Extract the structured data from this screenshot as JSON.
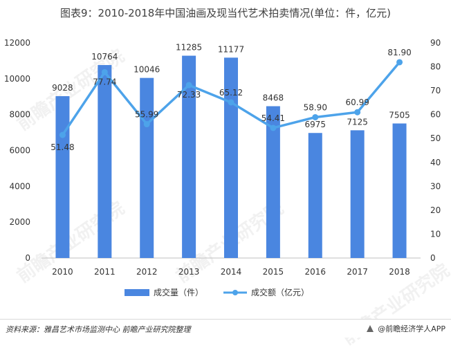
{
  "title": "图表9：2010-2018年中国油画及现当代艺术拍卖情况(单位：件，亿元)",
  "footer": {
    "source": "资料来源：雅昌艺术市场监测中心 前瞻产业研究院整理",
    "brand": "@前瞻经济学人APP"
  },
  "watermark": "前瞻产业研究院",
  "colors": {
    "bar": "#4A86E0",
    "line": "#4DA3EA"
  },
  "chart_data": {
    "type": "bar",
    "categories": [
      "2010",
      "2011",
      "2012",
      "2013",
      "2014",
      "2015",
      "2016",
      "2017",
      "2018"
    ],
    "series": [
      {
        "name": "成交量（件）",
        "type": "bar",
        "axis": "left",
        "values": [
          9028,
          10764,
          10046,
          11285,
          11177,
          8468,
          6975,
          7125,
          7505
        ]
      },
      {
        "name": "成交额（亿元）",
        "type": "line",
        "axis": "right",
        "values": [
          51.48,
          77.74,
          55.99,
          72.33,
          65.12,
          54.41,
          58.9,
          60.99,
          81.9
        ]
      }
    ],
    "bar_labels": [
      "9028",
      "10764",
      "10046",
      "11285",
      "11177",
      "8468",
      "6975",
      "7125",
      "7505"
    ],
    "line_labels": [
      "51.48",
      "77.74",
      "55.99",
      "72.33",
      "65.12",
      "54.41",
      "58.90",
      "60.99",
      "81.90"
    ],
    "y_left": {
      "min": 0,
      "max": 12000,
      "ticks": [
        "0",
        "2000",
        "4000",
        "6000",
        "8000",
        "10000",
        "12000"
      ]
    },
    "y_right": {
      "min": 0,
      "max": 90,
      "ticks": [
        "0",
        "10",
        "20",
        "30",
        "40",
        "50",
        "60",
        "70",
        "80",
        "90"
      ]
    },
    "legend": {
      "position": "bottom",
      "items": [
        "成交量（件）",
        "成交额（亿元）"
      ]
    },
    "grid": false
  }
}
